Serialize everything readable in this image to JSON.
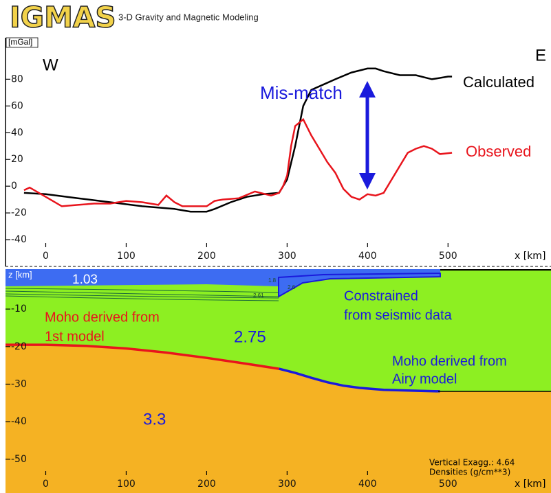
{
  "header": {
    "logo": "IGMAS",
    "title": "3-D Gravity and Magnetic Modeling"
  },
  "chart_data": [
    {
      "type": "line",
      "ylabel": "[mGal]",
      "xlabel": "x [km]",
      "annotations": [
        "W",
        "E",
        "Mis-match"
      ],
      "xlim": [
        -50,
        628
      ],
      "ylim": [
        -60,
        111
      ],
      "xticks": [
        0,
        100,
        200,
        300,
        400,
        500
      ],
      "yticks": [
        80,
        60,
        40,
        20,
        0,
        -20,
        -40
      ],
      "series": [
        {
          "name": "Calculated",
          "color": "#000000",
          "x": [
            -27,
            0,
            40,
            80,
            120,
            160,
            180,
            200,
            210,
            230,
            250,
            270,
            290,
            300,
            310,
            320,
            330,
            345,
            360,
            380,
            400,
            410,
            420,
            440,
            460,
            480,
            500,
            505
          ],
          "values": [
            -5,
            -6,
            -9,
            -12,
            -15,
            -17,
            -19,
            -19,
            -17,
            -12,
            -8,
            -6,
            -5,
            5,
            30,
            60,
            72,
            76,
            80,
            85,
            88,
            88,
            86,
            83,
            83,
            80,
            82,
            82
          ]
        },
        {
          "name": "Observed",
          "color": "#e8141c",
          "x": [
            -27,
            -20,
            0,
            20,
            40,
            60,
            80,
            100,
            120,
            140,
            150,
            160,
            170,
            180,
            200,
            210,
            220,
            240,
            260,
            280,
            290,
            295,
            300,
            305,
            310,
            320,
            330,
            340,
            350,
            360,
            370,
            380,
            390,
            400,
            410,
            420,
            430,
            440,
            450,
            460,
            470,
            480,
            490,
            505
          ],
          "values": [
            -3,
            -1,
            -8,
            -15,
            -14,
            -13,
            -13,
            -11,
            -12,
            -14,
            -7,
            -12,
            -15,
            -15,
            -15,
            -11,
            -10,
            -9,
            -4,
            -7,
            -5,
            0,
            8,
            30,
            45,
            50,
            38,
            28,
            18,
            10,
            -2,
            -8,
            -10,
            -6,
            -7,
            -5,
            5,
            15,
            25,
            28,
            30,
            28,
            24,
            25
          ]
        }
      ]
    },
    {
      "type": "section",
      "ylabel": "z [km]",
      "xlabel": "x [km]",
      "annotations": [
        "1.03",
        "Moho derived from",
        "1st model",
        "2.75",
        "Constrained",
        "from seismic data",
        "Moho derived from",
        "Airy model",
        "3.3",
        "Vertical Exagg.: 4.64",
        "Densities (g/cm**3)",
        "2.61",
        "2.6",
        "1.8"
      ],
      "xlim": [
        -50,
        628
      ],
      "ylim": [
        -59,
        1
      ],
      "xticks": [
        0,
        100,
        200,
        300,
        400,
        500
      ],
      "yticks": [
        -10,
        -20,
        -30,
        -40,
        -50
      ],
      "series": [
        {
          "color": "#e8141c",
          "x": [
            -50,
            0,
            50,
            100,
            150,
            200,
            250,
            290
          ],
          "values": [
            -19.5,
            -19.5,
            -19.8,
            -20.5,
            -21.6,
            -23,
            -24.6,
            -25.9
          ]
        },
        {
          "color": "#1a1adc",
          "x": [
            290,
            310,
            330,
            350,
            370,
            390,
            420,
            450,
            490
          ],
          "values": [
            -25.9,
            -27,
            -28.3,
            -29.5,
            -30.4,
            -31,
            -31.5,
            -31.7,
            -31.9
          ]
        }
      ]
    }
  ]
}
